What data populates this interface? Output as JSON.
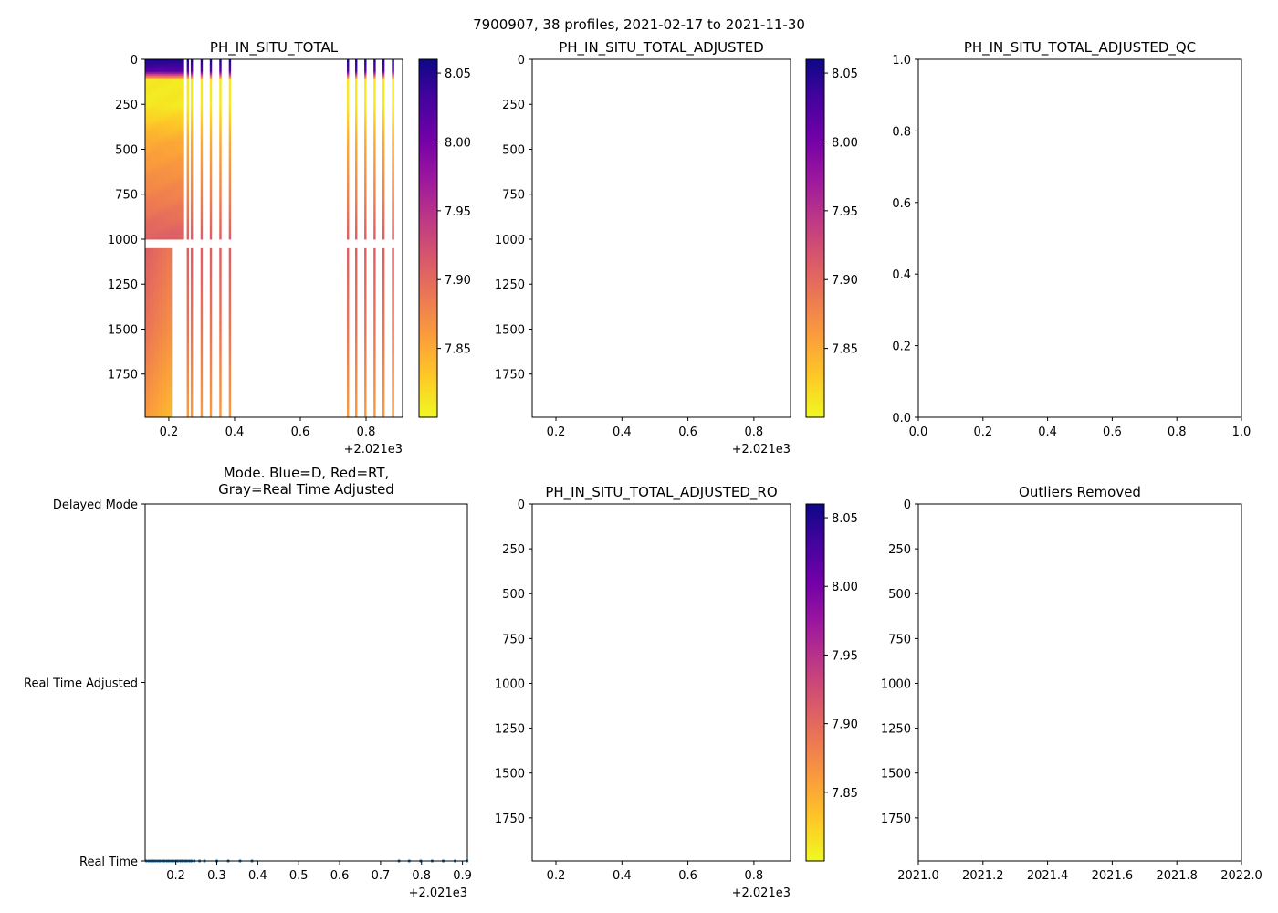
{
  "figure": {
    "suptitle": "7900907, 38 profiles, 2021-02-17 to 2021-11-30"
  },
  "colormap": {
    "name": "plasma_r",
    "stops": [
      "#f0f921",
      "#fdca26",
      "#fb9f3a",
      "#ed7953",
      "#d8576b",
      "#bd3786",
      "#9c179e",
      "#7201a8",
      "#46039f",
      "#0d0887"
    ]
  },
  "chart_data": [
    {
      "id": "ph-in-situ-total",
      "type": "heatmap",
      "title": "PH_IN_SITU_TOTAL",
      "xlabel": "",
      "ylabel": "",
      "xlim": [
        0.128,
        0.911
      ],
      "ylim": [
        1990,
        0
      ],
      "x_offset_label": "+2.021e3",
      "xticks": [
        0.2,
        0.4,
        0.6,
        0.8
      ],
      "xtick_labels": [
        "0.2",
        "0.4",
        "0.6",
        "0.8"
      ],
      "yticks": [
        0,
        250,
        500,
        750,
        1000,
        1250,
        1500,
        1750
      ],
      "ytick_labels": [
        "0",
        "250",
        "500",
        "750",
        "1000",
        "1250",
        "1500",
        "1750"
      ],
      "colorbar": {
        "range": [
          7.8,
          8.06
        ],
        "ticks": [
          7.85,
          7.9,
          7.95,
          8.0,
          8.05
        ],
        "tick_labels": [
          "7.85",
          "7.90",
          "7.95",
          "8.00",
          "8.05"
        ]
      },
      "dense_block": {
        "x_start": 0.128,
        "x_end": 0.245,
        "deep_x_end": 0.208
      },
      "gap_depth": [
        1000,
        1050
      ],
      "profiles_x": [
        0.258,
        0.27,
        0.3,
        0.328,
        0.357,
        0.386,
        0.745,
        0.77,
        0.798,
        0.826,
        0.853,
        0.882
      ],
      "depth_profile": [
        {
          "depth": 0,
          "value": 8.05
        },
        {
          "depth": 60,
          "value": 8.02
        },
        {
          "depth": 110,
          "value": 7.81
        },
        {
          "depth": 250,
          "value": 7.81
        },
        {
          "depth": 450,
          "value": 7.85
        },
        {
          "depth": 750,
          "value": 7.88
        },
        {
          "depth": 1000,
          "value": 7.91
        },
        {
          "depth": 1500,
          "value": 7.89
        },
        {
          "depth": 1990,
          "value": 7.86
        }
      ]
    },
    {
      "id": "ph-in-situ-total-adjusted",
      "type": "heatmap",
      "title": "PH_IN_SITU_TOTAL_ADJUSTED",
      "xlim": [
        0.128,
        0.911
      ],
      "ylim": [
        1990,
        0
      ],
      "x_offset_label": "+2.021e3",
      "xticks": [
        0.2,
        0.4,
        0.6,
        0.8
      ],
      "xtick_labels": [
        "0.2",
        "0.4",
        "0.6",
        "0.8"
      ],
      "yticks": [
        0,
        250,
        500,
        750,
        1000,
        1250,
        1500,
        1750
      ],
      "ytick_labels": [
        "0",
        "250",
        "500",
        "750",
        "1000",
        "1250",
        "1500",
        "1750"
      ],
      "colorbar": {
        "range": [
          7.8,
          8.06
        ],
        "ticks": [
          7.85,
          7.9,
          7.95,
          8.0,
          8.05
        ],
        "tick_labels": [
          "7.85",
          "7.90",
          "7.95",
          "8.00",
          "8.05"
        ]
      },
      "values": []
    },
    {
      "id": "ph-in-situ-total-adjusted-qc",
      "type": "scatter",
      "title": "PH_IN_SITU_TOTAL_ADJUSTED_QC",
      "xlim": [
        0.0,
        1.0
      ],
      "ylim": [
        0.0,
        1.0
      ],
      "xticks": [
        0.0,
        0.2,
        0.4,
        0.6,
        0.8,
        1.0
      ],
      "xtick_labels": [
        "0.0",
        "0.2",
        "0.4",
        "0.6",
        "0.8",
        "1.0"
      ],
      "yticks": [
        0.0,
        0.2,
        0.4,
        0.6,
        0.8,
        1.0
      ],
      "ytick_labels": [
        "0.0",
        "0.2",
        "0.4",
        "0.6",
        "0.8",
        "1.0"
      ],
      "values": []
    },
    {
      "id": "mode",
      "type": "scatter",
      "title_lines": [
        "Mode. Blue=D, Red=RT,",
        "Gray=Real Time Adjusted"
      ],
      "xlim": [
        0.125,
        0.912
      ],
      "ylim": [
        0,
        2
      ],
      "x_offset_label": "+2.021e3",
      "xticks": [
        0.2,
        0.3,
        0.4,
        0.5,
        0.6,
        0.7,
        0.8,
        0.9
      ],
      "xtick_labels": [
        "0.2",
        "0.3",
        "0.4",
        "0.5",
        "0.6",
        "0.7",
        "0.8",
        "0.9"
      ],
      "yticks": [
        0,
        1,
        2
      ],
      "ytick_labels": [
        "Real Time",
        "Real Time Adjusted",
        "Delayed Mode"
      ],
      "point_color": "#1f77b4",
      "series": [
        {
          "name": "Real Time",
          "y": 0,
          "x": [
            0.128,
            0.134,
            0.139,
            0.145,
            0.15,
            0.156,
            0.161,
            0.167,
            0.172,
            0.178,
            0.183,
            0.189,
            0.194,
            0.2,
            0.205,
            0.211,
            0.216,
            0.222,
            0.227,
            0.233,
            0.238,
            0.245,
            0.258,
            0.27,
            0.3,
            0.328,
            0.357,
            0.386,
            0.745,
            0.77,
            0.798,
            0.826,
            0.853,
            0.882,
            0.911
          ]
        }
      ]
    },
    {
      "id": "ph-in-situ-total-adjusted-ro",
      "type": "heatmap",
      "title": "PH_IN_SITU_TOTAL_ADJUSTED_RO",
      "xlim": [
        0.128,
        0.911
      ],
      "ylim": [
        1990,
        0
      ],
      "x_offset_label": "+2.021e3",
      "xticks": [
        0.2,
        0.4,
        0.6,
        0.8
      ],
      "xtick_labels": [
        "0.2",
        "0.4",
        "0.6",
        "0.8"
      ],
      "yticks": [
        0,
        250,
        500,
        750,
        1000,
        1250,
        1500,
        1750
      ],
      "ytick_labels": [
        "0",
        "250",
        "500",
        "750",
        "1000",
        "1250",
        "1500",
        "1750"
      ],
      "colorbar": {
        "range": [
          7.8,
          8.06
        ],
        "ticks": [
          7.85,
          7.9,
          7.95,
          8.0,
          8.05
        ],
        "tick_labels": [
          "7.85",
          "7.90",
          "7.95",
          "8.00",
          "8.05"
        ]
      },
      "values": []
    },
    {
      "id": "outliers-removed",
      "type": "scatter",
      "title": "Outliers Removed",
      "xlim": [
        2021.0,
        2022.0
      ],
      "ylim": [
        1990,
        0
      ],
      "xticks": [
        2021.0,
        2021.2,
        2021.4,
        2021.6,
        2021.8,
        2022.0
      ],
      "xtick_labels": [
        "2021.0",
        "2021.2",
        "2021.4",
        "2021.6",
        "2021.8",
        "2022.0"
      ],
      "yticks": [
        0,
        250,
        500,
        750,
        1000,
        1250,
        1500,
        1750
      ],
      "ytick_labels": [
        "0",
        "250",
        "500",
        "750",
        "1000",
        "1250",
        "1500",
        "1750"
      ],
      "values": []
    }
  ]
}
